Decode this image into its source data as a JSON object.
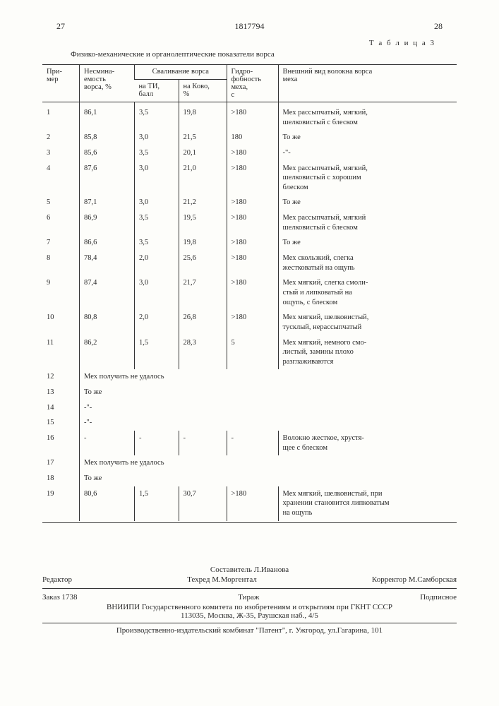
{
  "page_left": "27",
  "doc_number": "1817794",
  "page_right": "28",
  "table_label": "Т а б л и ц а 3",
  "table_caption": "Физико-механические и органолептические показатели ворса",
  "headers": {
    "c1": "При-\nмер",
    "c2": "Несмина-\nемость\nворса, %",
    "c3": "Сваливание ворса",
    "c3a": "на ТИ,\nбалл",
    "c3b": "на Ково,\n%",
    "c4": "Гидро-\nфобность\nмеха,\nс",
    "c5": "Внешний вид волокна ворса\nмеха"
  },
  "rows": [
    {
      "n": "1",
      "v2": "86,1",
      "v3a": "3,5",
      "v3b": "19,8",
      "v4": ">180",
      "v5": "Мех рассыпчатый, мягкий,\nшелковистый с блеском"
    },
    {
      "n": "2",
      "v2": "85,8",
      "v3a": "3,0",
      "v3b": "21,5",
      "v4": "180",
      "v5": "То же"
    },
    {
      "n": "3",
      "v2": "85,6",
      "v3a": "3,5",
      "v3b": "20,1",
      "v4": ">180",
      "v5": "-\"-"
    },
    {
      "n": "4",
      "v2": "87,6",
      "v3a": "3,0",
      "v3b": "21,0",
      "v4": ">180",
      "v5": "Мех рассыпчатый, мягкий,\nшелковистый с хорошим\nблеском"
    },
    {
      "n": "5",
      "v2": "87,1",
      "v3a": "3,0",
      "v3b": "21,2",
      "v4": ">180",
      "v5": "То же"
    },
    {
      "n": "6",
      "v2": "86,9",
      "v3a": "3,5",
      "v3b": "19,5",
      "v4": ">180",
      "v5": "Мех рассыпчатый, мягкий\nшелковистый с блеском"
    },
    {
      "n": "7",
      "v2": "86,6",
      "v3a": "3,5",
      "v3b": "19,8",
      "v4": ">180",
      "v5": "То же"
    },
    {
      "n": "8",
      "v2": "78,4",
      "v3a": "2,0",
      "v3b": "25,6",
      "v4": ">180",
      "v5": "Мех скользкий, слегка\nжестковатый на ощупь"
    },
    {
      "n": "9",
      "v2": "87,4",
      "v3a": "3,0",
      "v3b": "21,7",
      "v4": ">180",
      "v5": "Мех мягкий, слегка смоли-\nстый и липковатый на\nощупь, с блеском"
    },
    {
      "n": "10",
      "v2": "80,8",
      "v3a": "2,0",
      "v3b": "26,8",
      "v4": ">180",
      "v5": "Мех мягкий, шелковистый,\nтусклый, нерассыпчатый"
    },
    {
      "n": "11",
      "v2": "86,2",
      "v3a": "1,5",
      "v3b": "28,3",
      "v4": "5",
      "v5": "Мех мягкий, немного смо-\nлистый, замины плохо\nразглаживаются"
    },
    {
      "n": "12",
      "note": "Мех получить не удалось"
    },
    {
      "n": "13",
      "note": "То же"
    },
    {
      "n": "14",
      "note": "-\"-"
    },
    {
      "n": "15",
      "note": "-\"-"
    },
    {
      "n": "16",
      "v2": "-",
      "v3a": "-",
      "v3b": "-",
      "v4": "-",
      "v5": "Волокно жесткое, хрустя-\nщее с блеском"
    },
    {
      "n": "17",
      "note": "Мех получить не удалось"
    },
    {
      "n": "18",
      "note": "То же"
    },
    {
      "n": "19",
      "v2": "80,6",
      "v3a": "1,5",
      "v3b": "30,7",
      "v4": ">180",
      "v5": "Мех мягкий, шелковистый, при\nхранении становится липковатым\nна ощупь"
    }
  ],
  "footer": {
    "compiler": "Составитель  Л.Иванова",
    "editor_label": "Редактор",
    "techred": "Техред М.Моргентал",
    "corrector": "Корректор  М.Самборская",
    "order": "Заказ 1738",
    "tirazh": "Тираж",
    "podpis": "Подписное",
    "vniipi": "ВНИИПИ Государственного комитета по изобретениям и открытиям при ГКНТ СССР\n113035, Москва, Ж-35, Раушская наб., 4/5",
    "prod": "Производственно-издательский комбинат \"Патент\", г. Ужгород, ул.Гагарина, 101"
  }
}
